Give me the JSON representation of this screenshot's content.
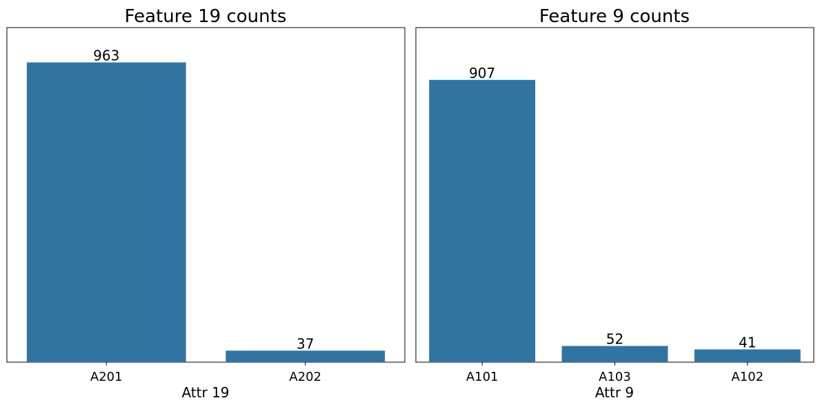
{
  "chart_data": [
    {
      "type": "bar",
      "title": "Feature 19 counts",
      "xlabel": "Attr 19",
      "ylabel": "",
      "categories": [
        "A201",
        "A202"
      ],
      "values": [
        963,
        37
      ],
      "data_labels": [
        "963",
        "37"
      ],
      "ylim": [
        0,
        1075
      ],
      "grid": false,
      "bar_color": "#3274a1"
    },
    {
      "type": "bar",
      "title": "Feature 9 counts",
      "xlabel": "Attr 9",
      "ylabel": "",
      "categories": [
        "A101",
        "A103",
        "A102"
      ],
      "values": [
        907,
        52,
        41
      ],
      "data_labels": [
        "907",
        "52",
        "41"
      ],
      "ylim": [
        0,
        1075
      ],
      "grid": false,
      "bar_color": "#3274a1"
    }
  ]
}
